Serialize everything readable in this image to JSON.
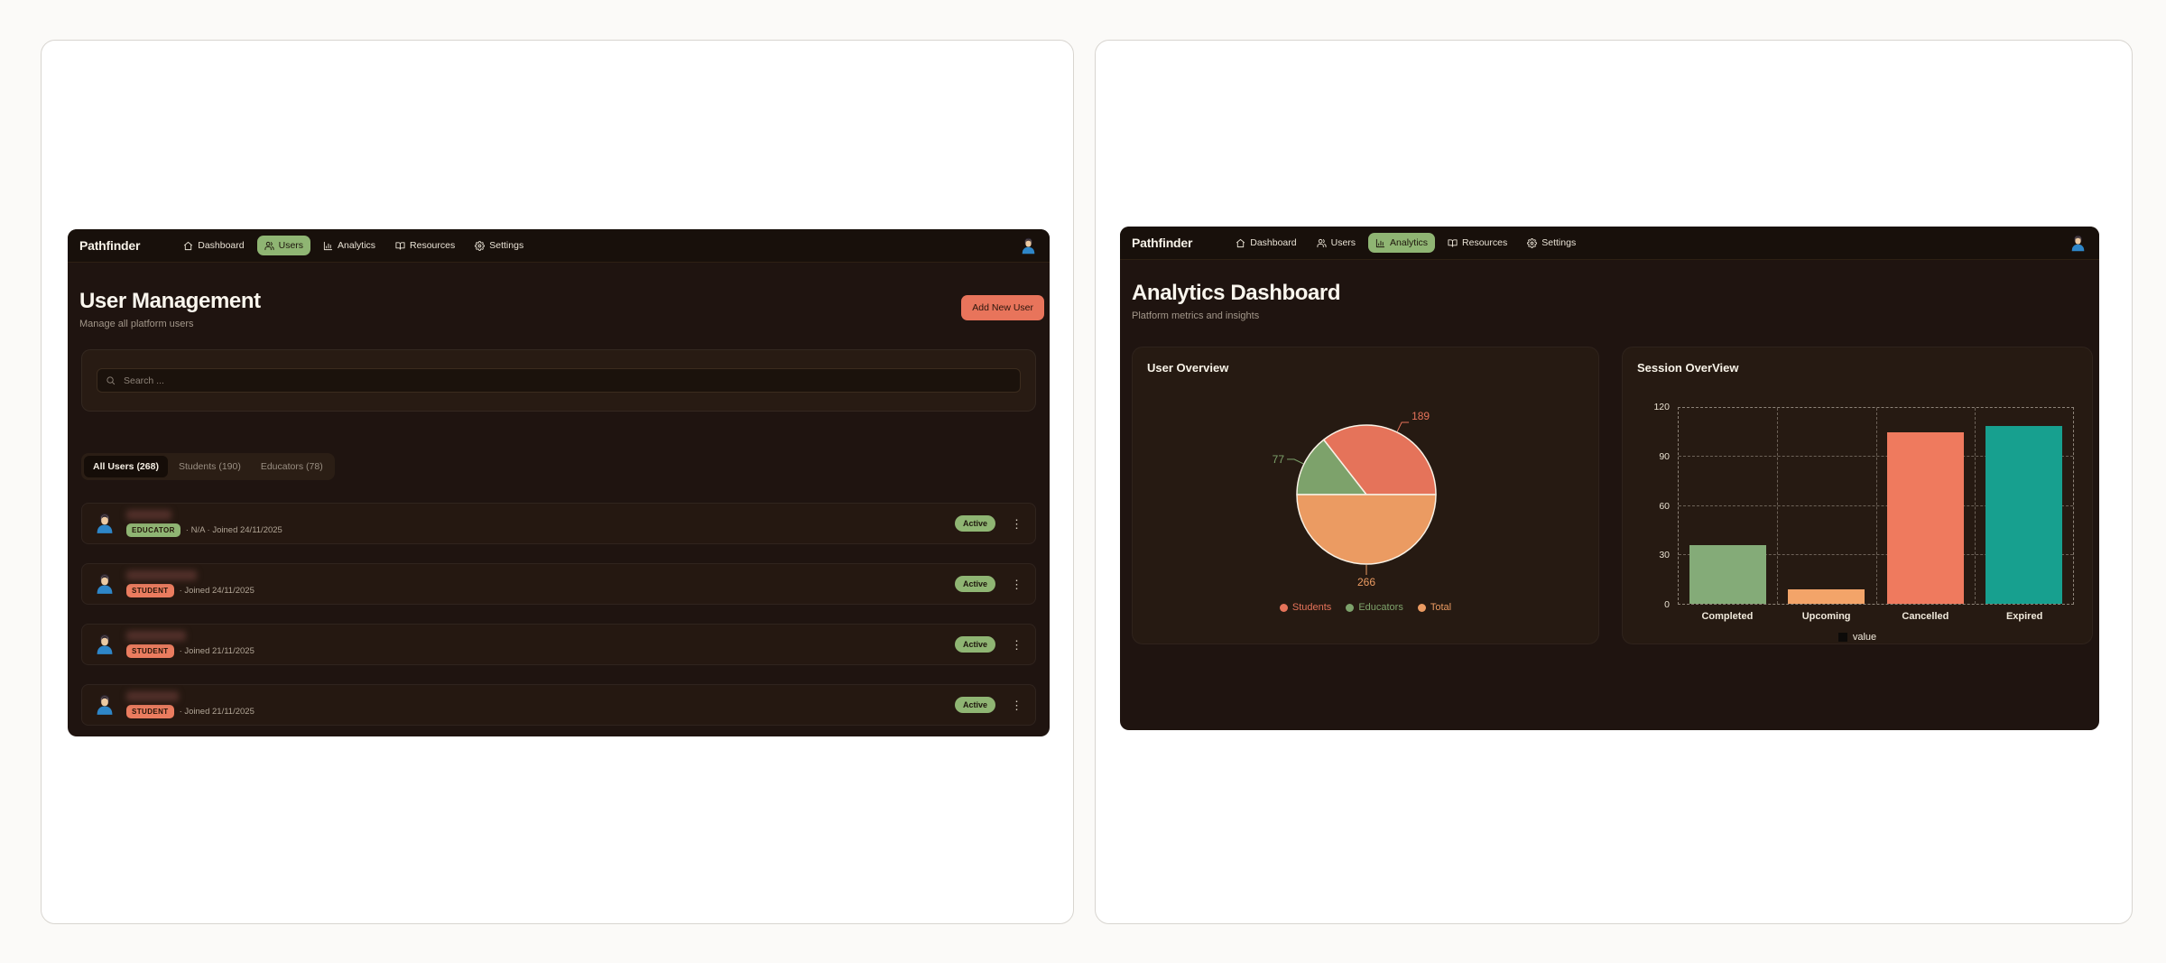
{
  "left_window": {
    "brand": "Pathfinder",
    "nav": {
      "items": [
        {
          "label": "Dashboard",
          "icon": "home-icon",
          "active": false
        },
        {
          "label": "Users",
          "icon": "users-icon",
          "active": true
        },
        {
          "label": "Analytics",
          "icon": "bar-chart-icon",
          "active": false
        },
        {
          "label": "Resources",
          "icon": "book-open-icon",
          "active": false
        },
        {
          "label": "Settings",
          "icon": "gear-icon",
          "active": false
        }
      ],
      "avatar_icon": "user-avatar-icon"
    },
    "page_title": "User Management",
    "page_subtitle": "Manage all platform users",
    "add_user_button": "Add New User",
    "search": {
      "placeholder": "Search ...",
      "icon": "search-icon"
    },
    "tabs": [
      {
        "label": "All Users (268)",
        "active": true
      },
      {
        "label": "Students (190)",
        "active": false
      },
      {
        "label": "Educators (78)",
        "active": false
      }
    ],
    "users": [
      {
        "name_redacted": true,
        "role": "EDUCATOR",
        "meta": "·  N/A  ·  Joined 24/11/2025",
        "status": "Active"
      },
      {
        "name_redacted": true,
        "role": "STUDENT",
        "meta": "·  Joined 24/11/2025",
        "status": "Active"
      },
      {
        "name_redacted": true,
        "role": "STUDENT",
        "meta": "·  Joined 21/11/2025",
        "status": "Active"
      },
      {
        "name_redacted": true,
        "role": "STUDENT",
        "meta": "·  Joined 21/11/2025",
        "status": "Active"
      }
    ]
  },
  "right_window": {
    "brand": "Pathfinder",
    "nav": {
      "items": [
        {
          "label": "Dashboard",
          "icon": "home-icon",
          "active": false
        },
        {
          "label": "Users",
          "icon": "users-icon",
          "active": false
        },
        {
          "label": "Analytics",
          "icon": "bar-chart-icon",
          "active": true
        },
        {
          "label": "Resources",
          "icon": "book-open-icon",
          "active": false
        },
        {
          "label": "Settings",
          "icon": "gear-icon",
          "active": false
        }
      ],
      "avatar_icon": "user-avatar-icon"
    },
    "page_title": "Analytics Dashboard",
    "page_subtitle": "Platform metrics and insights"
  },
  "chart_data": [
    {
      "type": "pie",
      "title": "User Overview",
      "slices": [
        {
          "label": "Students",
          "value": 189,
          "color": "#e5735a"
        },
        {
          "label": "Educators",
          "value": 77,
          "color": "#7da26b"
        },
        {
          "label": "Total",
          "value": 266,
          "color": "#eb9b62"
        }
      ],
      "start_angle_deg": 0,
      "direction": "counterclockwise-from-3-oclock",
      "labels": "outside-values",
      "slice_stroke": "#f8f1e5",
      "legend_position": "bottom"
    },
    {
      "type": "bar",
      "title": "Session OverView",
      "categories": [
        "Completed",
        "Upcoming",
        "Cancelled",
        "Expired"
      ],
      "values": [
        36,
        9,
        105,
        109
      ],
      "bar_colors": [
        "#84ab78",
        "#f3a469",
        "#ef7a5e",
        "#17a08f"
      ],
      "ylim": [
        0,
        120
      ],
      "yticks": [
        0,
        30,
        60,
        90,
        120
      ],
      "grid": "dashed",
      "legend": [
        {
          "label": "value",
          "color": "#0d0b09"
        }
      ]
    }
  ],
  "theme": {
    "accent_green": "#8fb573",
    "accent_salmon": "#e8745b",
    "accent_orange": "#eb9b62",
    "accent_teal": "#17a08f",
    "app_bg": "#1f1410",
    "nav_bg": "#18100b",
    "panel_bg": "#261a12",
    "text_cream": "#f2ece0",
    "text_muted": "#a3978a"
  }
}
